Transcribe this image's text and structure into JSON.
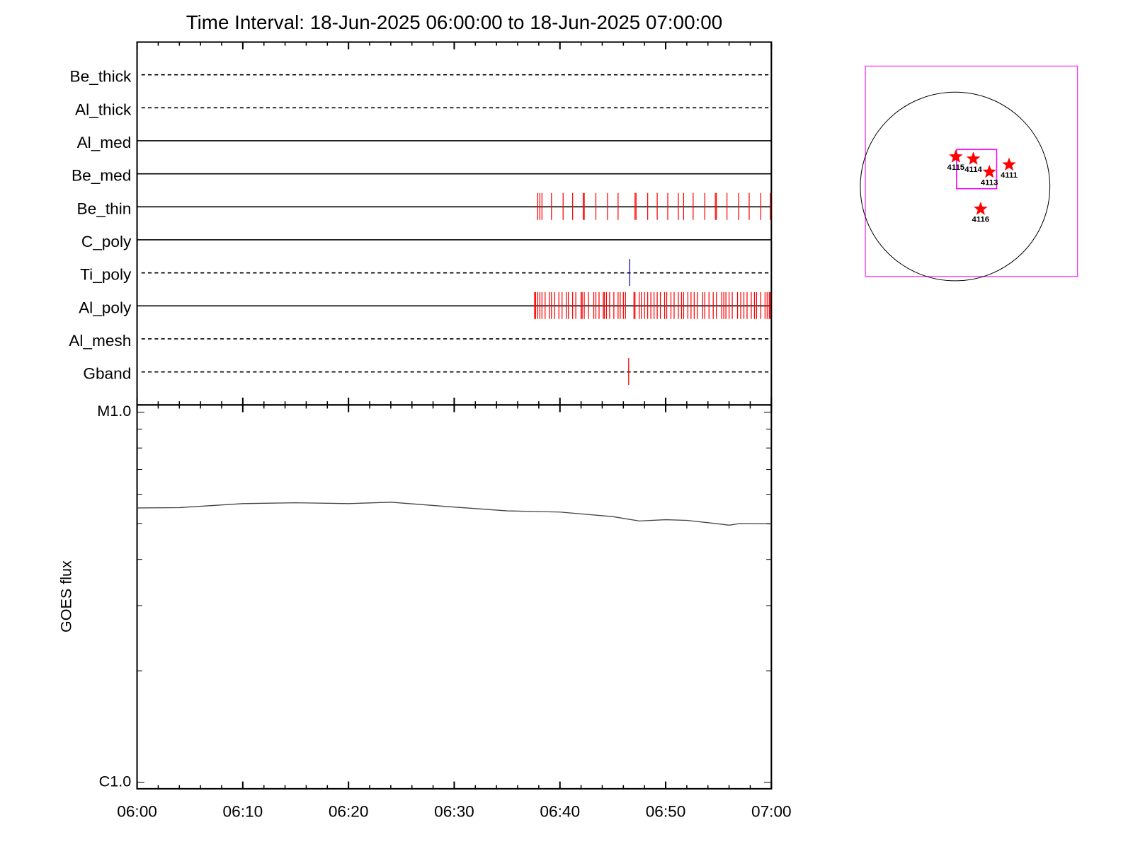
{
  "chart_data": [
    {
      "type": "event",
      "title": "Time Interval: 18-Jun-2025 06:00:00 to 18-Jun-2025 07:00:00",
      "xlim": [
        0,
        60
      ],
      "xticks": [
        0,
        10,
        20,
        30,
        40,
        50,
        60
      ],
      "xminor": [
        2,
        4,
        6,
        8,
        12,
        14,
        16,
        18,
        22,
        24,
        26,
        28,
        32,
        34,
        36,
        38,
        42,
        44,
        46,
        48,
        52,
        54,
        56,
        58
      ],
      "rows": [
        {
          "name": "Be_thick",
          "style": "dashed",
          "color": "#ff0000",
          "events": []
        },
        {
          "name": "Al_thick",
          "style": "dashed",
          "color": "#ff0000",
          "events": []
        },
        {
          "name": "Al_med",
          "style": "solid",
          "color": "#ff0000",
          "events": []
        },
        {
          "name": "Be_med",
          "style": "solid",
          "color": "#ff0000",
          "events": []
        },
        {
          "name": "Be_thin",
          "style": "solid",
          "color": "#ff0000",
          "events": [
            37.9,
            38.1,
            38.3,
            39.2,
            40.3,
            41.2,
            42.2,
            42.3,
            43.4,
            44.5,
            45.5,
            47.1,
            47.2,
            48.3,
            49.2,
            50.2,
            51.2,
            51.7,
            52.6,
            53.7,
            54.7,
            54.8,
            55.8,
            56.9,
            57.9,
            59.0,
            59.9
          ]
        },
        {
          "name": "C_poly",
          "style": "solid",
          "color": "#ff0000",
          "events": []
        },
        {
          "name": "Ti_poly",
          "style": "dashed",
          "color": "#0000cc",
          "events": [
            46.6
          ]
        },
        {
          "name": "Al_poly",
          "style": "solid",
          "color": "#ff0000",
          "events": [
            37.6,
            37.7,
            37.9,
            38.1,
            38.3,
            38.6,
            39.0,
            39.2,
            39.5,
            39.9,
            40.2,
            40.6,
            40.8,
            41.2,
            41.5,
            42.0,
            42.1,
            42.3,
            42.7,
            43.2,
            43.4,
            43.7,
            44.1,
            44.2,
            44.4,
            44.7,
            45.1,
            45.5,
            45.7,
            46.0,
            46.2,
            47.0,
            47.1,
            47.5,
            47.7,
            48.0,
            48.3,
            48.6,
            48.9,
            49.2,
            49.5,
            49.9,
            50.1,
            50.5,
            50.8,
            51.2,
            51.5,
            51.7,
            52.1,
            52.4,
            52.7,
            53.0,
            53.5,
            53.7,
            54.1,
            54.5,
            54.8,
            55.3,
            55.5,
            55.7,
            56.0,
            56.3,
            56.8,
            57.1,
            57.4,
            57.7,
            58.1,
            58.4,
            58.6,
            59.0,
            59.4,
            59.6,
            59.8,
            59.9
          ]
        },
        {
          "name": "Al_mesh",
          "style": "dashed",
          "color": "#ff0000",
          "events": []
        },
        {
          "name": "Gband",
          "style": "dashed",
          "color": "#ff0000",
          "events": [
            46.5
          ]
        }
      ]
    },
    {
      "type": "line",
      "ylabel": "GOES flux",
      "log_y": true,
      "xlim": [
        0,
        60
      ],
      "xticks": [
        {
          "value": 0,
          "label": "06:00"
        },
        {
          "value": 10,
          "label": "06:10"
        },
        {
          "value": 20,
          "label": "06:20"
        },
        {
          "value": 30,
          "label": "06:30"
        },
        {
          "value": 40,
          "label": "06:40"
        },
        {
          "value": 50,
          "label": "06:50"
        },
        {
          "value": 60,
          "label": "07:00"
        }
      ],
      "xminor": [
        2,
        4,
        6,
        8,
        12,
        14,
        16,
        18,
        22,
        24,
        26,
        28,
        32,
        34,
        36,
        38,
        42,
        44,
        46,
        48,
        52,
        54,
        56,
        58
      ],
      "ylim": [
        9.6e-07,
        1.046e-05
      ],
      "yticks": [
        {
          "value": 1e-06,
          "label": "C1.0"
        },
        {
          "value": 1e-05,
          "label": "M1.0"
        }
      ],
      "yminor": [
        2e-06,
        3e-06,
        4e-06,
        5e-06,
        6e-06,
        7e-06,
        8e-06,
        9e-06
      ],
      "color": "#444444",
      "x": [
        0,
        4,
        10,
        15,
        20,
        24,
        30,
        35,
        40,
        45,
        47.5,
        50,
        52,
        55,
        56,
        57,
        60
      ],
      "values": [
        5.51e-06,
        5.52e-06,
        5.66e-06,
        5.69e-06,
        5.66e-06,
        5.71e-06,
        5.54e-06,
        5.41e-06,
        5.37e-06,
        5.22e-06,
        5.08e-06,
        5.12e-06,
        5.1e-06,
        4.99e-06,
        4.95e-06,
        5e-06,
        4.99e-06
      ]
    }
  ],
  "map": {
    "regions": [
      "4115",
      "4114",
      "4113",
      "4111",
      "4116"
    ]
  }
}
